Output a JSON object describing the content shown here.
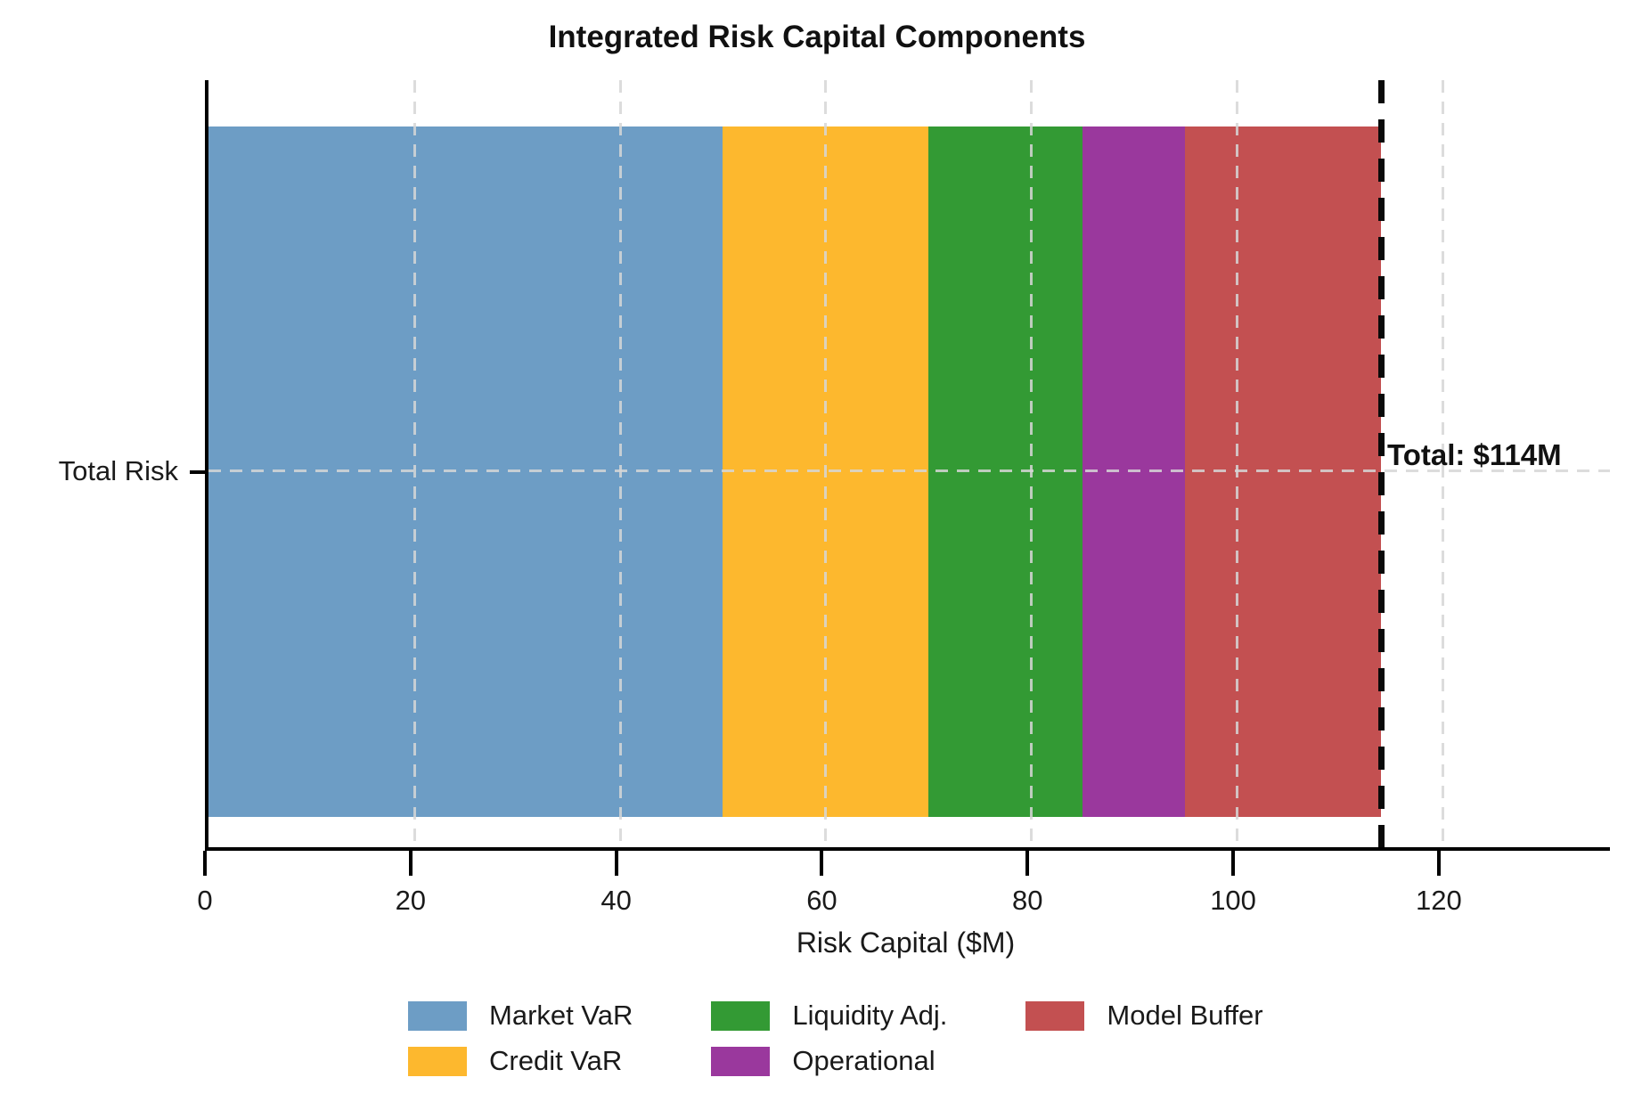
{
  "chart_data": {
    "type": "bar",
    "orientation": "horizontal",
    "stacked": true,
    "title": "Integrated Risk Capital Components",
    "xlabel": "Risk Capital ($M)",
    "ylabel": "",
    "categories": [
      "Total Risk"
    ],
    "series": [
      {
        "name": "Market VaR",
        "values": [
          50
        ],
        "color": "#6d9dc5"
      },
      {
        "name": "Credit VaR",
        "values": [
          20
        ],
        "color": "#fdb82e"
      },
      {
        "name": "Liquidity Adj.",
        "values": [
          15
        ],
        "color": "#339a34"
      },
      {
        "name": "Operational",
        "values": [
          10
        ],
        "color": "#9a389d"
      },
      {
        "name": "Model Buffer",
        "values": [
          19
        ],
        "color": "#c35051"
      }
    ],
    "total": 114,
    "xlim": [
      0,
      136.3
    ],
    "xticks": [
      0,
      20,
      40,
      60,
      80,
      100,
      120
    ],
    "grid": {
      "show": true,
      "style": "dashed",
      "color": "#d6d6d6",
      "axis": "both"
    },
    "total_line": {
      "x": 114,
      "style": "dashed",
      "color": "#000000"
    },
    "annotation": {
      "text": "Total: $114M",
      "x": 114
    },
    "legend": {
      "position": "bottom",
      "columns": 3
    }
  }
}
